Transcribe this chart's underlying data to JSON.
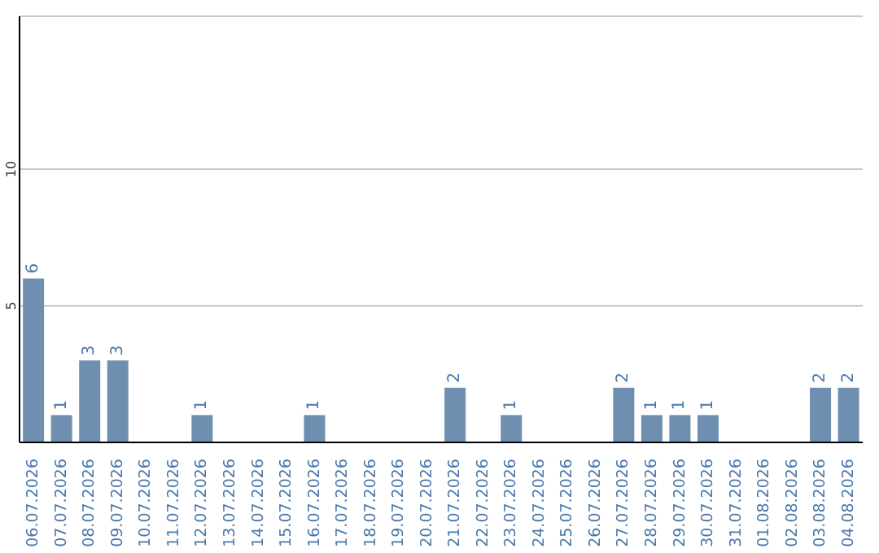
{
  "chart_data": {
    "type": "bar",
    "categories": [
      "06.07.2026",
      "07.07.2026",
      "08.07.2026",
      "09.07.2026",
      "10.07.2026",
      "11.07.2026",
      "12.07.2026",
      "13.07.2026",
      "14.07.2026",
      "15.07.2026",
      "16.07.2026",
      "17.07.2026",
      "18.07.2026",
      "19.07.2026",
      "20.07.2026",
      "21.07.2026",
      "22.07.2026",
      "23.07.2026",
      "24.07.2026",
      "25.07.2026",
      "26.07.2026",
      "27.07.2026",
      "28.07.2026",
      "29.07.2026",
      "30.07.2026",
      "31.07.2026",
      "01.08.2026",
      "02.08.2026",
      "03.08.2026",
      "04.08.2026"
    ],
    "values": [
      6,
      1,
      3,
      3,
      0,
      0,
      1,
      0,
      0,
      0,
      1,
      0,
      0,
      0,
      0,
      2,
      0,
      1,
      0,
      0,
      0,
      2,
      1,
      1,
      1,
      0,
      0,
      0,
      2,
      2
    ],
    "value_labels": [
      "6",
      "1",
      "3",
      "3",
      null,
      null,
      "1",
      null,
      null,
      null,
      "1",
      null,
      null,
      null,
      null,
      "2",
      null,
      "1",
      null,
      null,
      null,
      "2",
      "1",
      "1",
      "1",
      null,
      null,
      null,
      "2",
      "2"
    ],
    "color": "#6f8fb0",
    "ylim": [
      0,
      15.6
    ],
    "yticks": [
      5,
      10
    ],
    "grid": "y",
    "legend": false
  }
}
